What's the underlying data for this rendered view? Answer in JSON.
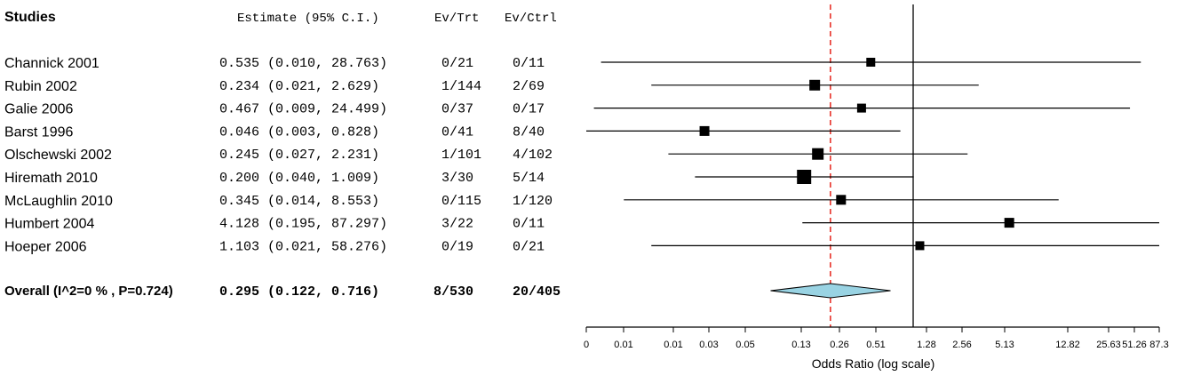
{
  "header": {
    "studies": "Studies",
    "estimate": "Estimate (95% C.I.)",
    "ev_trt": "Ev/Trt",
    "ev_ctrl": "Ev/Ctrl"
  },
  "chart_data": {
    "type": "forest",
    "xlabel": "Odds Ratio (log scale)",
    "x_scale": "log",
    "tick_labels": [
      "0",
      "0.01",
      "0.01",
      "0.03",
      "0.05",
      "0.13",
      "0.26",
      "0.51",
      "1.28",
      "2.56",
      "5.13",
      "12.82",
      "25.63",
      "51.26",
      "87.3"
    ],
    "reference_line": 1,
    "summary_line": 0.295,
    "studies": [
      {
        "name": "Channick 2001",
        "estimate": 0.535,
        "lower": 0.01,
        "upper": 28.763,
        "ci_text": "0.535 (0.010, 28.763)",
        "ev_trt": "0/21",
        "ev_ctrl": "0/11"
      },
      {
        "name": "Rubin 2002",
        "estimate": 0.234,
        "lower": 0.021,
        "upper": 2.629,
        "ci_text": "0.234 (0.021,  2.629)",
        "ev_trt": "1/144",
        "ev_ctrl": "2/69"
      },
      {
        "name": "Galie 2006",
        "estimate": 0.467,
        "lower": 0.009,
        "upper": 24.499,
        "ci_text": "0.467 (0.009, 24.499)",
        "ev_trt": "0/37",
        "ev_ctrl": "0/17"
      },
      {
        "name": "Barst 1996",
        "estimate": 0.046,
        "lower": 0.003,
        "upper": 0.828,
        "ci_text": "0.046 (0.003,  0.828)",
        "ev_trt": "0/41",
        "ev_ctrl": "8/40"
      },
      {
        "name": "Olschewski 2002",
        "estimate": 0.245,
        "lower": 0.027,
        "upper": 2.231,
        "ci_text": "0.245 (0.027,  2.231)",
        "ev_trt": "1/101",
        "ev_ctrl": "4/102"
      },
      {
        "name": "Hiremath 2010",
        "estimate": 0.2,
        "lower": 0.04,
        "upper": 1.009,
        "ci_text": "0.200 (0.040,  1.009)",
        "ev_trt": "3/30",
        "ev_ctrl": "5/14"
      },
      {
        "name": "McLaughlin 2010",
        "estimate": 0.345,
        "lower": 0.014,
        "upper": 8.553,
        "ci_text": "0.345 (0.014,  8.553)",
        "ev_trt": "0/115",
        "ev_ctrl": "1/120"
      },
      {
        "name": "Humbert 2004",
        "estimate": 4.128,
        "lower": 0.195,
        "upper": 87.297,
        "ci_text": "4.128 (0.195, 87.297)",
        "ev_trt": "3/22",
        "ev_ctrl": "0/11"
      },
      {
        "name": "Hoeper 2006",
        "estimate": 1.103,
        "lower": 0.021,
        "upper": 58.276,
        "ci_text": "1.103 (0.021, 58.276)",
        "ev_trt": "0/19",
        "ev_ctrl": "0/21"
      }
    ],
    "overall": {
      "name": "Overall (I^2=0 % , P=0.724)",
      "estimate": 0.295,
      "lower": 0.122,
      "upper": 0.716,
      "ci_text": "0.295 (0.122,  0.716)",
      "ev_trt": "8/530",
      "ev_ctrl": "20/405"
    },
    "colors": {
      "summary_line": "#e8332a",
      "diamond_fill": "#99d3e3",
      "marks": "#000000"
    }
  }
}
